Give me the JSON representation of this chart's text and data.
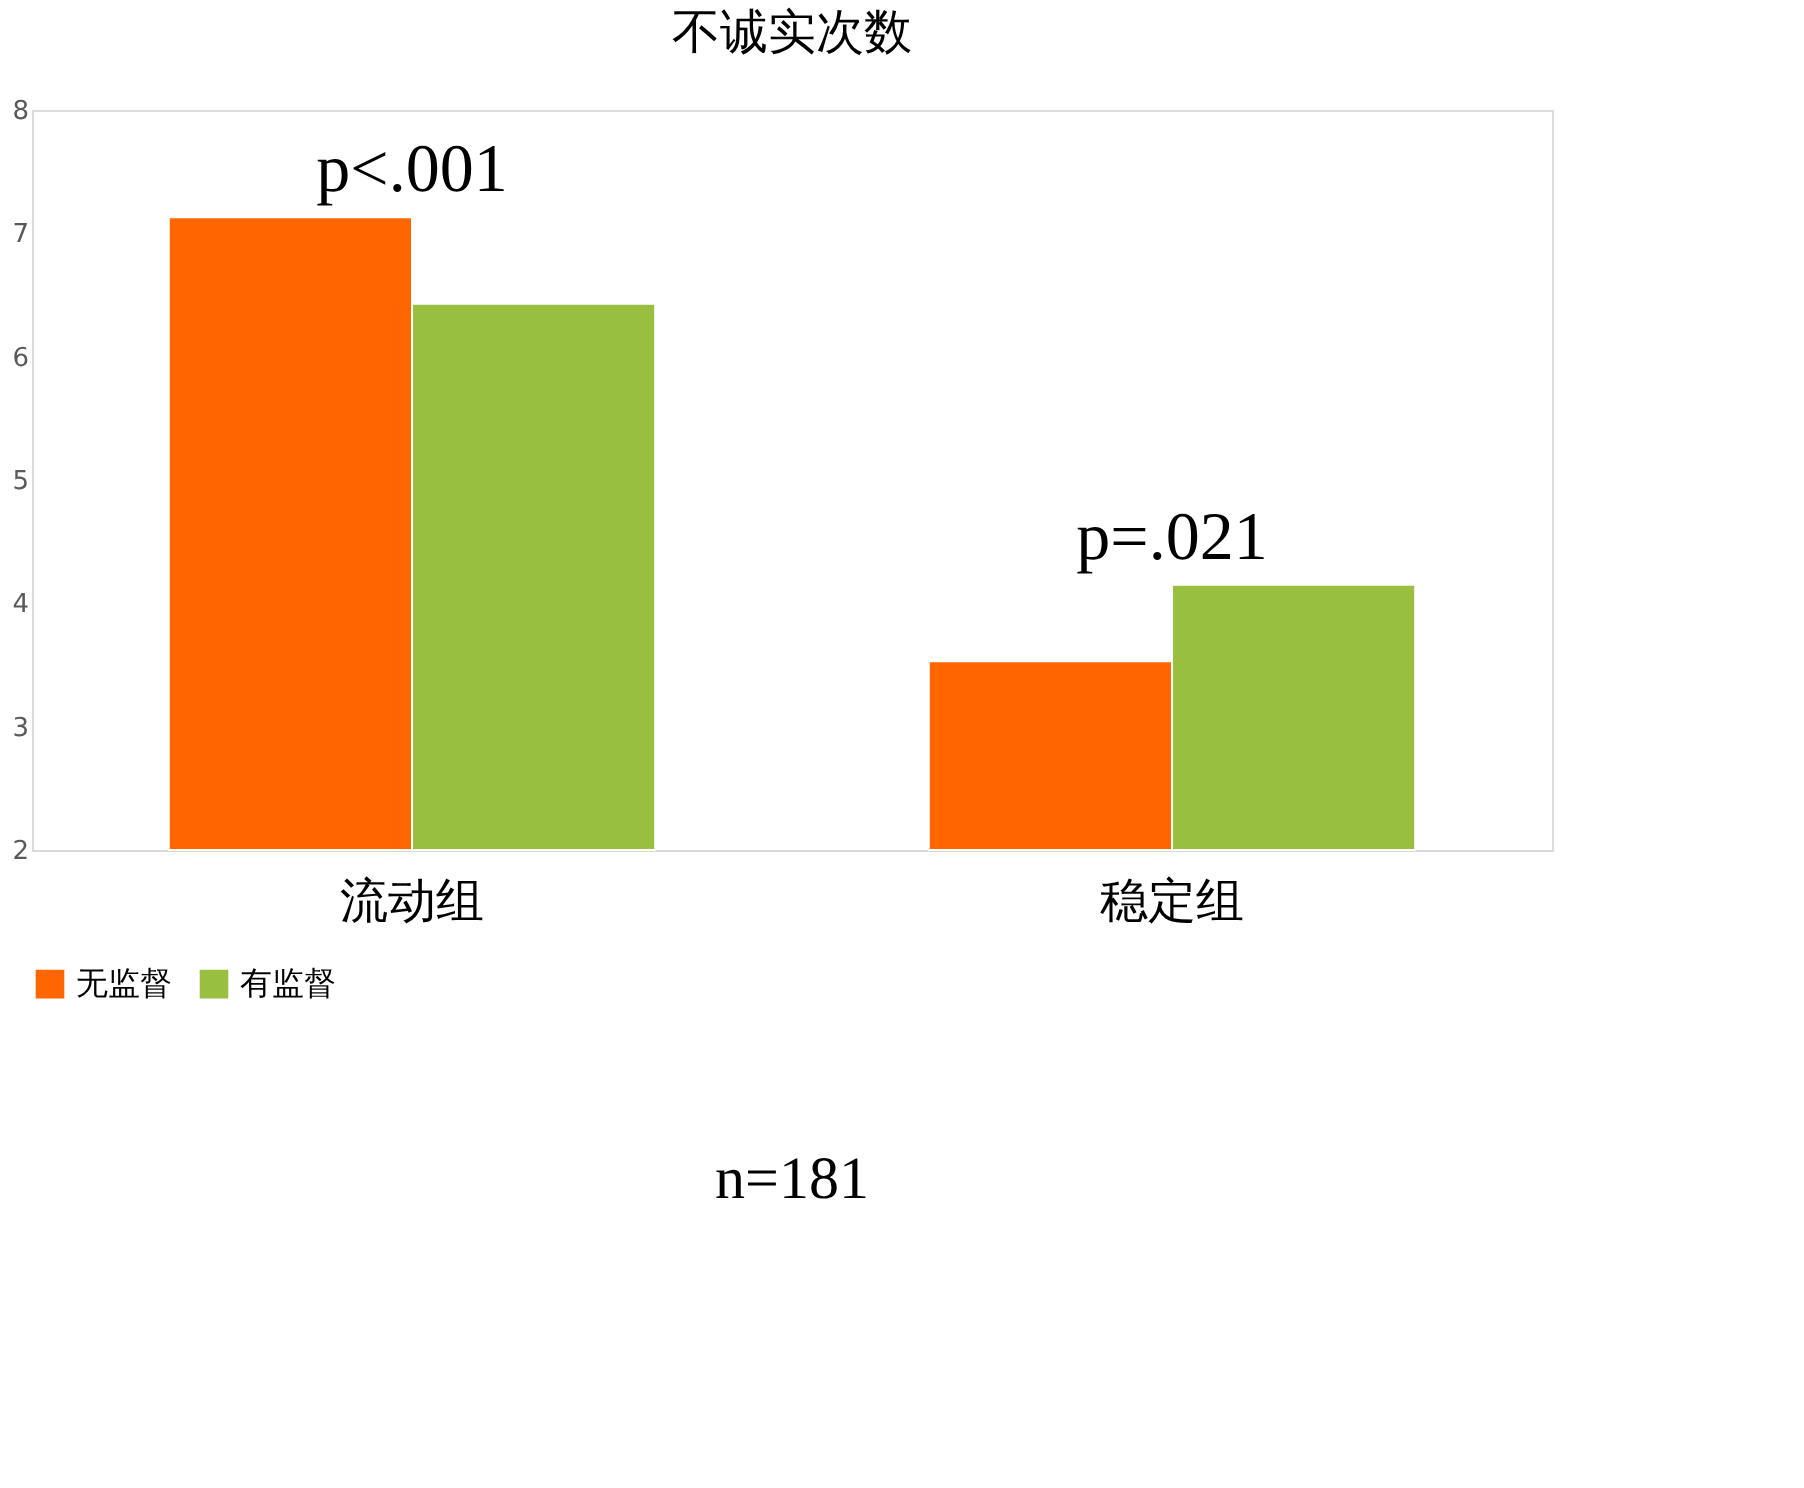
{
  "chart_data": {
    "type": "bar",
    "title": "不诚实次数",
    "categories": [
      "流动组",
      "稳定组"
    ],
    "series": [
      {
        "name": "无监督",
        "color": "#ff6600",
        "values": [
          7.13,
          3.53
        ]
      },
      {
        "name": "有监督",
        "color": "#99bf40",
        "values": [
          6.43,
          4.15
        ]
      }
    ],
    "ylim": [
      2,
      8
    ],
    "yticks": [
      2,
      3,
      4,
      5,
      6,
      7,
      8
    ],
    "grid": false,
    "legend": "bottom",
    "annotations": [
      "p<.001",
      "p=.021",
      "n=181"
    ]
  }
}
